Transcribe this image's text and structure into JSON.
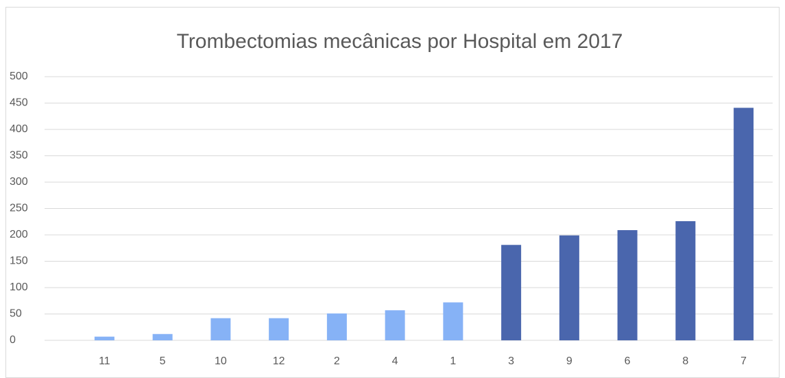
{
  "chart_data": {
    "type": "bar",
    "title": "Trombectomias mecânicas por Hospital em 2017",
    "categories": [
      "11",
      "5",
      "10",
      "12",
      "2",
      "4",
      "1",
      "3",
      "9",
      "6",
      "8",
      "7"
    ],
    "values": [
      7,
      12,
      42,
      42,
      51,
      57,
      72,
      181,
      199,
      209,
      226,
      441
    ],
    "colors": [
      "#86b2f6",
      "#86b2f6",
      "#86b2f6",
      "#86b2f6",
      "#86b2f6",
      "#86b2f6",
      "#86b2f6",
      "#4a66ad",
      "#4a66ad",
      "#4a66ad",
      "#4a66ad",
      "#4a66ad"
    ],
    "ylim": [
      0,
      500
    ],
    "yticks": [
      0,
      50,
      100,
      150,
      200,
      250,
      300,
      350,
      400,
      450,
      500
    ],
    "grid": true
  }
}
